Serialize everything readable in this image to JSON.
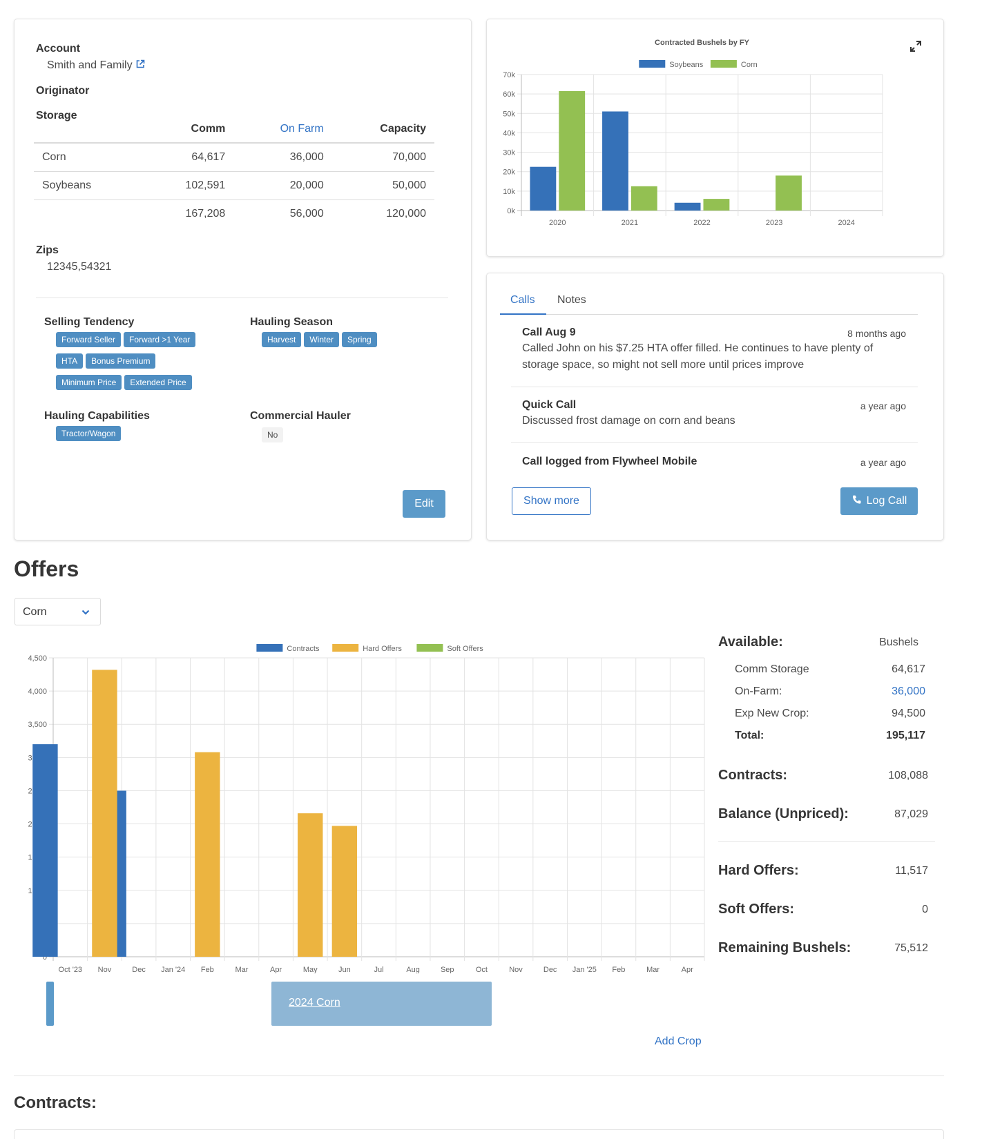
{
  "account": {
    "account_label": "Account",
    "account_value": "Smith and Family",
    "originator_label": "Originator",
    "storage_label": "Storage",
    "storage_headers": [
      "",
      "Comm",
      "On Farm",
      "Capacity"
    ],
    "storage_rows": [
      {
        "crop": "Corn",
        "comm": "64,617",
        "on_farm": "36,000",
        "capacity": "70,000"
      },
      {
        "crop": "Soybeans",
        "comm": "102,591",
        "on_farm": "20,000",
        "capacity": "50,000"
      },
      {
        "crop": "",
        "comm": "167,208",
        "on_farm": "56,000",
        "capacity": "120,000"
      }
    ],
    "zips_label": "Zips",
    "zips_value": "12345,54321",
    "selling_tendency_label": "Selling Tendency",
    "selling_tendency_tags": [
      "Forward Seller",
      "Forward >1 Year",
      "HTA",
      "Bonus Premium",
      "Minimum Price",
      "Extended Price"
    ],
    "hauling_season_label": "Hauling Season",
    "hauling_season_tags": [
      "Harvest",
      "Winter",
      "Spring"
    ],
    "hauling_capabilities_label": "Hauling Capabilities",
    "hauling_capabilities_tags": [
      "Tractor/Wagon"
    ],
    "commercial_hauler_label": "Commercial Hauler",
    "commercial_hauler_value": "No",
    "edit_label": "Edit"
  },
  "fy_chart": {
    "expand_icon": "expand-icon"
  },
  "activity": {
    "tabs": [
      "Calls",
      "Notes"
    ],
    "calls": [
      {
        "title": "Call Aug 9",
        "time": "8 months ago",
        "body": "Called John on his $7.25 HTA offer filled. He continues to have plenty of storage space, so might not sell more until prices improve"
      },
      {
        "title": "Quick Call",
        "time": "a year ago",
        "body": "Discussed frost damage on corn and beans"
      },
      {
        "title": "Call logged from Flywheel Mobile",
        "time": "a year ago",
        "body": ""
      }
    ],
    "show_more_label": "Show more",
    "log_call_label": "Log Call"
  },
  "offers": {
    "heading": "Offers",
    "crop_select_value": "Corn",
    "crop_bar_label": "2024 Corn",
    "add_crop_label": "Add Crop",
    "summary": {
      "available_label": "Available:",
      "bushels_label": "Bushels",
      "rows": [
        {
          "label": "Comm Storage",
          "value": "64,617"
        },
        {
          "label": "On-Farm:",
          "value": "36,000"
        },
        {
          "label": "Exp New Crop:",
          "value": "94,500"
        },
        {
          "label": "Total:",
          "value": "195,117"
        }
      ],
      "contracts_label": "Contracts:",
      "contracts_value": "108,088",
      "balance_label": "Balance (Unpriced):",
      "balance_value": "87,029",
      "hard_label": "Hard Offers:",
      "hard_value": "11,517",
      "soft_label": "Soft Offers:",
      "soft_value": "0",
      "remaining_label": "Remaining Bushels:",
      "remaining_value": "75,512"
    }
  },
  "contracts": {
    "heading": "Contracts:"
  },
  "colors": {
    "soybeans": "#3571b8",
    "corn": "#93c052",
    "contracts": "#3571b8",
    "hard_offers": "#ecb440",
    "soft_offers": "#93c052",
    "link": "#3273c5"
  },
  "chart_data": [
    {
      "type": "bar",
      "title": "Contracted Bushels by FY",
      "categories": [
        "2020",
        "2021",
        "2022",
        "2023",
        "2024"
      ],
      "series": [
        {
          "name": "Soybeans",
          "values": [
            22500,
            51000,
            4000,
            0,
            0
          ]
        },
        {
          "name": "Corn",
          "values": [
            61500,
            12500,
            6000,
            18000,
            0
          ]
        }
      ],
      "y_ticks": [
        "0k",
        "10k",
        "20k",
        "30k",
        "40k",
        "50k",
        "60k",
        "70k"
      ],
      "ylim": [
        0,
        70000
      ],
      "legend": "top"
    },
    {
      "type": "bar",
      "title": "",
      "categories": [
        "Oct '23",
        "Nov",
        "Dec",
        "Jan '24",
        "Feb",
        "Mar",
        "Apr",
        "May",
        "Jun",
        "Jul",
        "Aug",
        "Sep",
        "Oct",
        "Nov",
        "Dec",
        "Jan '25",
        "Feb",
        "Mar",
        "Apr"
      ],
      "series": [
        {
          "name": "Contracts",
          "values": [
            3200,
            0,
            2500,
            0,
            0,
            0,
            0,
            0,
            0,
            0,
            0,
            0,
            0,
            0,
            0,
            0,
            0,
            0,
            0
          ]
        },
        {
          "name": "Hard Offers",
          "values": [
            0,
            4320,
            0,
            0,
            3080,
            0,
            0,
            2160,
            1970,
            0,
            0,
            0,
            0,
            0,
            0,
            0,
            0,
            0,
            0
          ]
        },
        {
          "name": "Soft Offers",
          "values": [
            0,
            0,
            0,
            0,
            0,
            0,
            0,
            0,
            0,
            0,
            0,
            0,
            0,
            0,
            0,
            0,
            0,
            0,
            0
          ]
        }
      ],
      "y_ticks": [
        "0",
        "500",
        "1,000",
        "1,500",
        "2,000",
        "2,500",
        "3,000",
        "3,500",
        "4,000",
        "4,500"
      ],
      "ylim": [
        0,
        4500
      ],
      "legend": "top"
    }
  ]
}
